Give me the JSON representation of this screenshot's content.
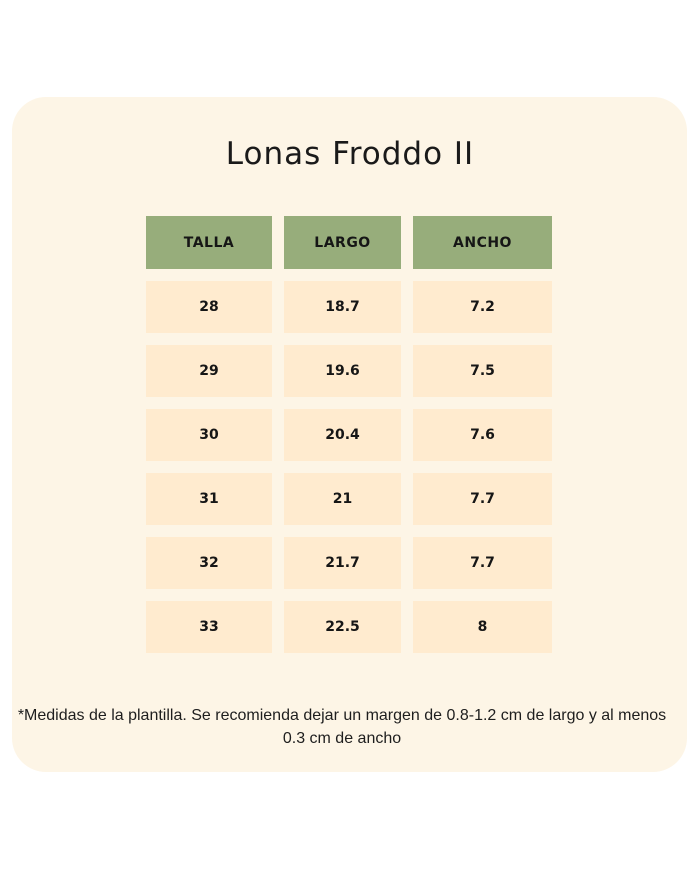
{
  "title": "Lonas Froddo II",
  "table": {
    "headers": [
      "TALLA",
      "LARGO",
      "ANCHO"
    ],
    "rows": [
      [
        "28",
        "18.7",
        "7.2"
      ],
      [
        "29",
        "19.6",
        "7.5"
      ],
      [
        "30",
        "20.4",
        "7.6"
      ],
      [
        "31",
        "21",
        "7.7"
      ],
      [
        "32",
        "21.7",
        "7.7"
      ],
      [
        "33",
        "22.5",
        "8"
      ]
    ]
  },
  "note": "*Medidas de la plantilla. Se recomienda dejar un margen de 0.8-1.2 cm de largo y al menos 0.3 cm de ancho",
  "colors": {
    "card": "#fdf5e6",
    "header": "#97ad7b",
    "cell": "#ffebcf"
  }
}
